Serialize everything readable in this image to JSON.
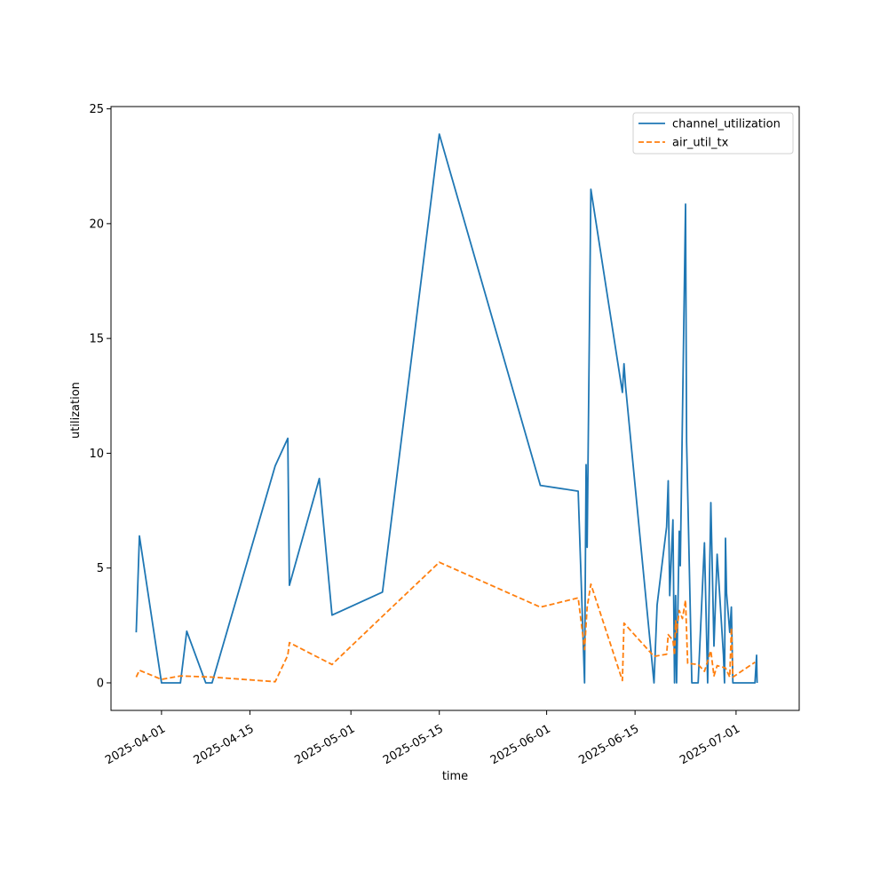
{
  "chart_data": {
    "type": "line",
    "title": "",
    "xlabel": "time",
    "ylabel": "utilization",
    "xlim": [
      "2025-03-24",
      "2025-07-11"
    ],
    "ylim": [
      -1.2,
      25.1
    ],
    "x_ticks": [
      {
        "date": "2025-04-01",
        "label": "2025-04-01"
      },
      {
        "date": "2025-04-15",
        "label": "2025-04-15"
      },
      {
        "date": "2025-05-01",
        "label": "2025-05-01"
      },
      {
        "date": "2025-05-15",
        "label": "2025-05-15"
      },
      {
        "date": "2025-06-01",
        "label": "2025-06-01"
      },
      {
        "date": "2025-06-15",
        "label": "2025-06-15"
      },
      {
        "date": "2025-07-01",
        "label": "2025-07-01"
      }
    ],
    "y_ticks": [
      0,
      5,
      10,
      15,
      20,
      25
    ],
    "grid": false,
    "legend": "top-right",
    "colors": {
      "channel_utilization": "#1f77b4",
      "air_util_tx": "#ff7f0e"
    },
    "series": [
      {
        "name": "channel_utilization",
        "style": "solid",
        "points": [
          [
            "2025-03-28",
            2.2
          ],
          [
            "2025-03-28T12:00",
            6.4
          ],
          [
            "2025-04-01",
            0.0
          ],
          [
            "2025-04-04",
            0.0
          ],
          [
            "2025-04-05",
            2.25
          ],
          [
            "2025-04-08",
            0.0
          ],
          [
            "2025-04-09",
            0.0
          ],
          [
            "2025-04-19",
            9.45
          ],
          [
            "2025-04-21",
            10.65
          ],
          [
            "2025-04-21T06:00",
            4.25
          ],
          [
            "2025-04-26",
            8.9
          ],
          [
            "2025-04-28",
            2.95
          ],
          [
            "2025-05-06",
            3.95
          ],
          [
            "2025-05-15",
            23.9
          ],
          [
            "2025-05-31",
            8.6
          ],
          [
            "2025-06-06",
            8.35
          ],
          [
            "2025-06-07",
            0.0
          ],
          [
            "2025-06-07T06:00",
            9.5
          ],
          [
            "2025-06-07T10:00",
            5.9
          ],
          [
            "2025-06-08",
            21.5
          ],
          [
            "2025-06-13",
            12.65
          ],
          [
            "2025-06-13T06:00",
            13.9
          ],
          [
            "2025-06-13T12:00",
            12.9
          ],
          [
            "2025-06-18",
            0.0
          ],
          [
            "2025-06-18T12:00",
            3.4
          ],
          [
            "2025-06-20",
            6.8
          ],
          [
            "2025-06-20T06:00",
            8.8
          ],
          [
            "2025-06-20T12:00",
            3.8
          ],
          [
            "2025-06-21",
            7.1
          ],
          [
            "2025-06-21T06:00",
            0.0
          ],
          [
            "2025-06-21T10:00",
            3.8
          ],
          [
            "2025-06-21T14:00",
            0.0
          ],
          [
            "2025-06-22",
            6.6
          ],
          [
            "2025-06-22T04:00",
            5.1
          ],
          [
            "2025-06-23",
            20.85
          ],
          [
            "2025-06-23T04:00",
            10.5
          ],
          [
            "2025-06-24",
            0.0
          ],
          [
            "2025-06-25",
            0.0
          ],
          [
            "2025-06-26",
            6.1
          ],
          [
            "2025-06-26T12:00",
            0.0
          ],
          [
            "2025-06-27",
            7.85
          ],
          [
            "2025-06-27T12:00",
            1.6
          ],
          [
            "2025-06-28",
            5.6
          ],
          [
            "2025-06-29",
            1.2
          ],
          [
            "2025-06-29T04:00",
            0.0
          ],
          [
            "2025-06-29T08:00",
            6.3
          ],
          [
            "2025-06-29T12:00",
            3.9
          ],
          [
            "2025-06-30",
            2.2
          ],
          [
            "2025-06-30T06:00",
            3.3
          ],
          [
            "2025-06-30T12:00",
            0.0
          ],
          [
            "2025-07-04",
            0.0
          ],
          [
            "2025-07-04T06:00",
            1.2
          ],
          [
            "2025-07-04T08:00",
            0.0
          ]
        ]
      },
      {
        "name": "air_util_tx",
        "style": "dashed",
        "points": [
          [
            "2025-03-28",
            0.25
          ],
          [
            "2025-03-28T12:00",
            0.55
          ],
          [
            "2025-04-01",
            0.15
          ],
          [
            "2025-04-04",
            0.3
          ],
          [
            "2025-04-09",
            0.25
          ],
          [
            "2025-04-19",
            0.05
          ],
          [
            "2025-04-21",
            1.2
          ],
          [
            "2025-04-21T06:00",
            1.75
          ],
          [
            "2025-04-28",
            0.8
          ],
          [
            "2025-05-06",
            2.9
          ],
          [
            "2025-05-15",
            5.25
          ],
          [
            "2025-05-31",
            3.3
          ],
          [
            "2025-06-06",
            3.7
          ],
          [
            "2025-06-07",
            1.45
          ],
          [
            "2025-06-07T10:00",
            3.3
          ],
          [
            "2025-06-08",
            4.3
          ],
          [
            "2025-06-13",
            0.1
          ],
          [
            "2025-06-13T06:00",
            2.6
          ],
          [
            "2025-06-18",
            1.15
          ],
          [
            "2025-06-20",
            1.25
          ],
          [
            "2025-06-20T06:00",
            2.1
          ],
          [
            "2025-06-21",
            1.85
          ],
          [
            "2025-06-21T06:00",
            1.2
          ],
          [
            "2025-06-21T10:00",
            2.7
          ],
          [
            "2025-06-21T14:00",
            2.2
          ],
          [
            "2025-06-22",
            3.15
          ],
          [
            "2025-06-22T12:00",
            2.8
          ],
          [
            "2025-06-23",
            3.6
          ],
          [
            "2025-06-23T08:00",
            0.85
          ],
          [
            "2025-06-25",
            0.8
          ],
          [
            "2025-06-26",
            0.5
          ],
          [
            "2025-06-27",
            1.4
          ],
          [
            "2025-06-27T12:00",
            0.3
          ],
          [
            "2025-06-28",
            0.75
          ],
          [
            "2025-06-29T08:00",
            0.65
          ],
          [
            "2025-06-30",
            0.25
          ],
          [
            "2025-06-30T06:00",
            2.4
          ],
          [
            "2025-06-30T12:00",
            0.25
          ],
          [
            "2025-07-04",
            0.9
          ]
        ]
      }
    ]
  }
}
